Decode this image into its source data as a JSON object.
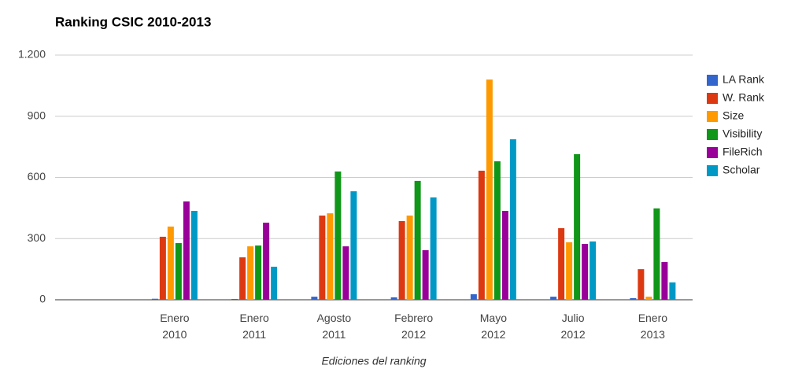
{
  "chart_data": {
    "type": "bar",
    "title": "Ranking CSIC 2010-2013",
    "x_label": "Ediciones del ranking",
    "categories": [
      null,
      "Enero 2010",
      "Enero 2011",
      "Agosto 2011",
      "Febrero 2012",
      "Mayo 2012",
      "Julio 2012",
      "Enero 2013"
    ],
    "series": [
      {
        "name": "LA Rank",
        "color": "#3366cc",
        "values": [
          null,
          5,
          4,
          15,
          12,
          27,
          15,
          8
        ]
      },
      {
        "name": "W. Rank",
        "color": "#dc3912",
        "values": [
          null,
          309,
          208,
          413,
          386,
          633,
          351,
          150
        ]
      },
      {
        "name": "Size",
        "color": "#ff9900",
        "values": [
          null,
          359,
          262,
          424,
          413,
          1080,
          282,
          15
        ]
      },
      {
        "name": "Visibility",
        "color": "#109618",
        "values": [
          null,
          278,
          266,
          629,
          583,
          679,
          714,
          448
        ]
      },
      {
        "name": "FileRich",
        "color": "#990099",
        "values": [
          null,
          482,
          378,
          262,
          243,
          436,
          274,
          185
        ]
      },
      {
        "name": "Scholar",
        "color": "#0099c6",
        "values": [
          null,
          436,
          162,
          532,
          502,
          787,
          286,
          85
        ]
      }
    ],
    "ylim": [
      0,
      1200
    ],
    "yticks": [
      0,
      300,
      600,
      900,
      {
        "value": 1200,
        "label": "1.200"
      }
    ],
    "grid": true,
    "legend": "right"
  }
}
